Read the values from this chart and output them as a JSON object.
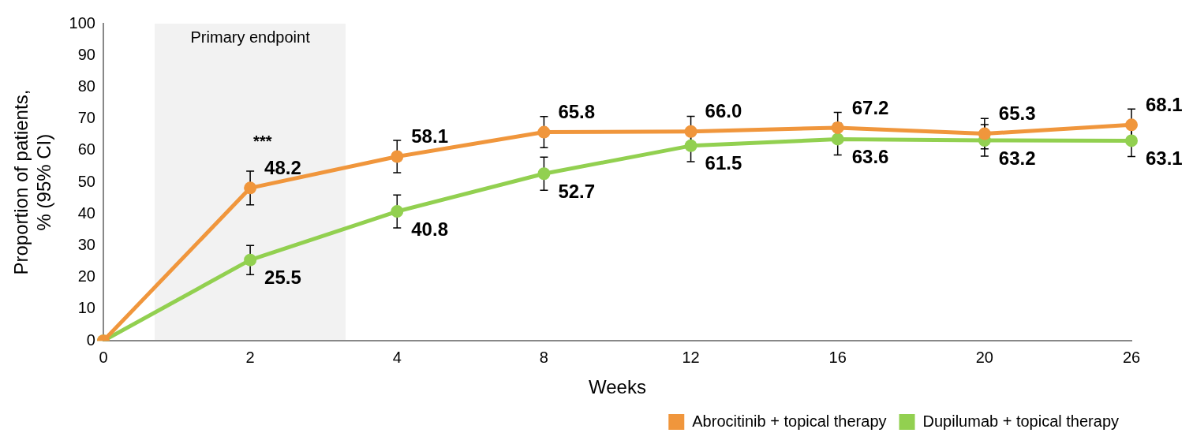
{
  "chart_data": {
    "type": "line",
    "xlabel": "Weeks",
    "ylabel": "Proportion of patients,\n% (95% CI)",
    "categories": [
      "0",
      "2",
      "4",
      "8",
      "12",
      "16",
      "20",
      "26"
    ],
    "series": [
      {
        "name": "Abrocitinib + topical therapy",
        "color": "#f0963c",
        "values": [
          0,
          48.2,
          58.1,
          65.8,
          66.0,
          67.2,
          65.3,
          68.1
        ],
        "errors": [
          null,
          5.3,
          5.1,
          4.9,
          4.8,
          4.8,
          4.8,
          5
        ],
        "value_labels": [
          null,
          "48.2",
          "58.1",
          "65.8",
          "66.0",
          "67.2",
          "65.3",
          "68.1"
        ]
      },
      {
        "name": "Dupilumab + topical therapy",
        "color": "#92d050",
        "values": [
          0,
          25.5,
          40.8,
          52.7,
          61.5,
          63.6,
          63.2,
          63.1
        ],
        "errors": [
          null,
          4.6,
          5.2,
          5.2,
          5,
          5,
          5,
          5
        ],
        "value_labels": [
          null,
          "25.5",
          "40.8",
          "52.7",
          "61.5",
          "63.6",
          "63.2",
          "63.1"
        ]
      }
    ],
    "ylim": [
      0,
      100
    ],
    "yticks": [
      0,
      10,
      20,
      30,
      40,
      50,
      60,
      70,
      80,
      90,
      100
    ],
    "grid": false,
    "legend": "bottom right",
    "marker": "circle",
    "line_style": "solid",
    "annotations": [
      "Primary endpoint",
      "***"
    ]
  }
}
